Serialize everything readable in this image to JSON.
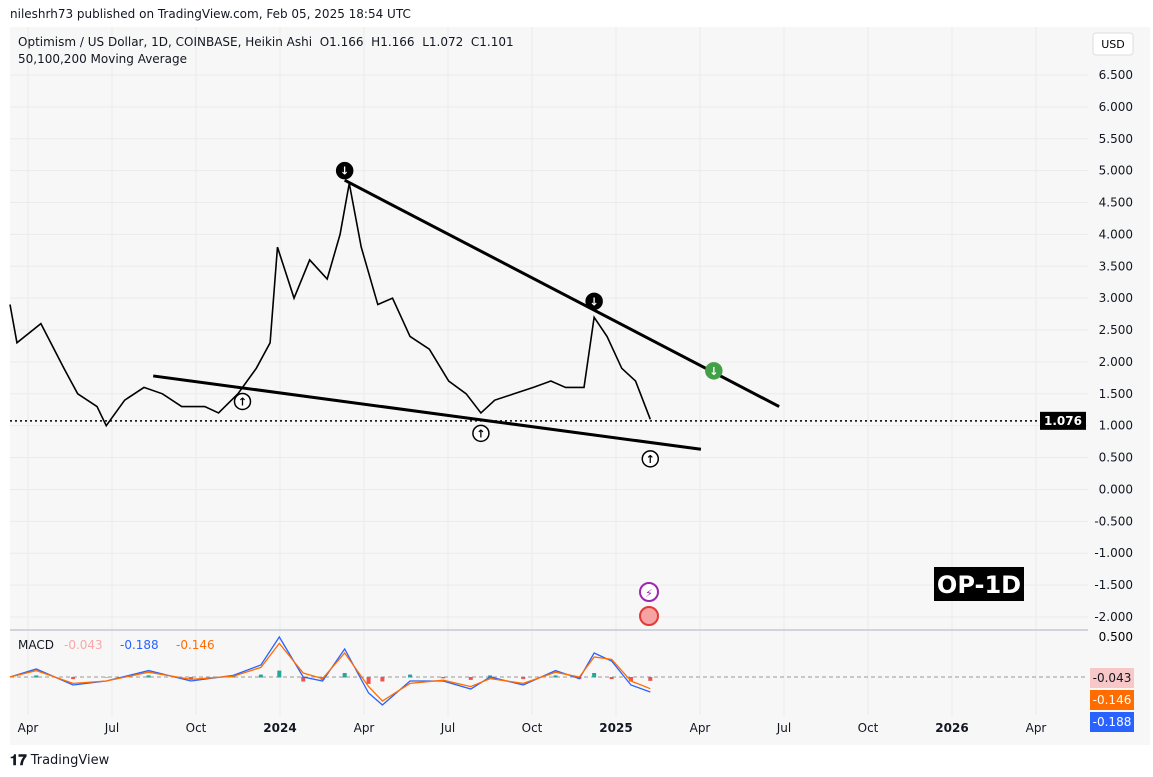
{
  "header": {
    "published": "nileshrh73 published on TradingView.com, Feb 05, 2025 18:54 UTC"
  },
  "legend": {
    "symbol": "Optimism / US Dollar, 1D, COINBASE, Heikin Ashi",
    "o": "O1.166",
    "h": "H1.166",
    "l": "L1.072",
    "c": "C1.101",
    "ma": "50,100,200 Moving Average"
  },
  "currency": "USD",
  "watermark": "OP-1D",
  "footer": {
    "brand": "TradingView"
  },
  "chart_data": [
    {
      "type": "line",
      "title": "Optimism / US Dollar, 1D, COINBASE, Heikin Ashi",
      "ylim": [
        -2.0,
        6.5
      ],
      "y_ticks": [
        "6.500",
        "6.000",
        "5.500",
        "5.000",
        "4.500",
        "4.000",
        "3.500",
        "3.000",
        "2.500",
        "2.000",
        "1.500",
        "1.000",
        "0.500",
        "0.000",
        "-0.500",
        "-1.000",
        "-1.500",
        "-2.000"
      ],
      "x_ticks": [
        "Apr",
        "Jul",
        "Oct",
        "2024",
        "Apr",
        "Jul",
        "Oct",
        "2025",
        "Apr",
        "Jul",
        "Oct",
        "2026",
        "Apr"
      ],
      "last_price": "1.076",
      "series": [
        {
          "x": [
            "2023-03-01",
            "2023-03-20",
            "2023-04-15",
            "2023-05-10",
            "2023-05-25",
            "2023-06-15",
            "2023-06-25",
            "2023-07-15",
            "2023-08-05",
            "2023-08-25",
            "2023-09-15",
            "2023-10-10",
            "2023-10-25",
            "2023-11-15",
            "2023-12-05",
            "2023-12-20",
            "2023-12-28",
            "2024-01-15",
            "2024-02-01",
            "2024-02-20",
            "2024-03-05",
            "2024-03-15",
            "2024-03-28",
            "2024-04-15",
            "2024-05-01",
            "2024-05-20",
            "2024-06-10",
            "2024-07-01",
            "2024-07-20",
            "2024-08-05",
            "2024-08-20",
            "2024-09-10",
            "2024-10-01",
            "2024-10-20",
            "2024-11-05",
            "2024-11-25",
            "2024-12-06",
            "2024-12-20",
            "2025-01-05",
            "2025-01-20",
            "2025-02-05"
          ],
          "y": [
            2.9,
            2.3,
            2.6,
            1.9,
            1.5,
            1.3,
            1.0,
            1.4,
            1.6,
            1.5,
            1.3,
            1.3,
            1.2,
            1.5,
            1.9,
            2.3,
            3.8,
            3.0,
            3.6,
            3.3,
            4.0,
            4.8,
            3.8,
            2.9,
            3.0,
            2.4,
            2.2,
            1.7,
            1.5,
            1.2,
            1.4,
            1.5,
            1.6,
            1.7,
            1.6,
            1.6,
            2.7,
            2.4,
            1.9,
            1.7,
            1.1
          ]
        }
      ],
      "annotations": {
        "resistance": [
          [
            "2024-03-10",
            4.85
          ],
          [
            "2025-06-25",
            1.3
          ]
        ],
        "support": [
          [
            "2023-08-15",
            1.78
          ],
          [
            "2025-04-01",
            0.63
          ]
        ],
        "down_arrows": [
          [
            "2024-03-10",
            5.0
          ],
          [
            "2024-12-06",
            2.95
          ]
        ],
        "up_arrows": [
          [
            "2023-11-20",
            1.38
          ],
          [
            "2024-08-05",
            0.88
          ],
          [
            "2025-02-05",
            0.48
          ]
        ],
        "green_down_arrow": [
          [
            "2025-04-15",
            1.86
          ]
        ]
      }
    },
    {
      "type": "line",
      "title": "MACD",
      "values_label": [
        "-0.043",
        "-0.188",
        "-0.146"
      ],
      "y_ticks": [
        "0.500"
      ],
      "colors": {
        "macd": "#2962ff",
        "signal": "#ff6d00",
        "hist_pos": "#26a69a",
        "hist_neg": "#ef5350"
      },
      "x": [
        "2023-03-01",
        "2023-04-10",
        "2023-05-20",
        "2023-06-25",
        "2023-08-10",
        "2023-09-25",
        "2023-11-10",
        "2023-12-10",
        "2023-12-30",
        "2024-01-25",
        "2024-02-15",
        "2024-03-10",
        "2024-04-05",
        "2024-04-20",
        "2024-05-20",
        "2024-06-25",
        "2024-07-25",
        "2024-08-15",
        "2024-09-20",
        "2024-10-25",
        "2024-11-20",
        "2024-12-06",
        "2024-12-25",
        "2025-01-15",
        "2025-02-05"
      ],
      "series": [
        {
          "name": "MACD",
          "values": [
            0.0,
            0.1,
            -0.1,
            -0.05,
            0.08,
            -0.05,
            0.02,
            0.15,
            0.5,
            0.0,
            -0.05,
            0.35,
            -0.2,
            -0.35,
            -0.05,
            -0.05,
            -0.15,
            0.0,
            -0.1,
            0.08,
            -0.02,
            0.3,
            0.2,
            -0.1,
            -0.188
          ]
        },
        {
          "name": "Signal",
          "values": [
            0.0,
            0.08,
            -0.08,
            -0.05,
            0.06,
            -0.03,
            0.01,
            0.12,
            0.42,
            0.05,
            -0.02,
            0.3,
            -0.12,
            -0.3,
            -0.08,
            -0.04,
            -0.12,
            -0.02,
            -0.08,
            0.06,
            0.0,
            0.25,
            0.22,
            -0.05,
            -0.146
          ]
        }
      ]
    }
  ]
}
